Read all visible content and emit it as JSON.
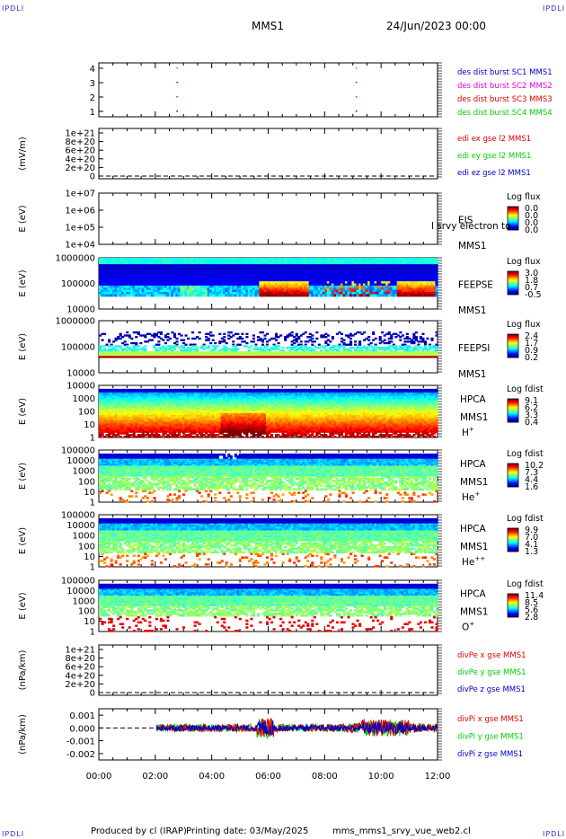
{
  "corners": {
    "tl": "IPDLI",
    "tr": "IPDLI",
    "bl": "IPDLI",
    "br": "IPDLI"
  },
  "header": {
    "mission": "MMS1",
    "date": "24/Jun/2023 00:00"
  },
  "footer": {
    "produced": "Produced by cl (IRAP)",
    "printing": "Printing date: 03/May/2025",
    "file": "mms_mms1_srvy_vue_web2.cl"
  },
  "colors": {
    "red": "#e00000",
    "green": "#00d000",
    "blue": "#0000c8",
    "magenta": "#e000e0"
  },
  "chart_data": [
    {
      "type": "scatter",
      "panel": "burst",
      "yticks": [
        "4",
        "3",
        "2",
        "1"
      ],
      "ylim": [
        0.5,
        4.5
      ],
      "legend": [
        {
          "text": "des dist burst SC1 MMS1",
          "color": "#0000c8"
        },
        {
          "text": "des dist burst SC2 MMS2",
          "color": "#e000e0"
        },
        {
          "text": "des dist burst SC3 MMS3",
          "color": "#e00000"
        },
        {
          "text": "des dist burst SC4 MMS4",
          "color": "#00d000"
        }
      ],
      "points": [
        {
          "t": 2.75,
          "sc": 1
        },
        {
          "t": 2.75,
          "sc": 2
        },
        {
          "t": 2.75,
          "sc": 3
        },
        {
          "t": 2.75,
          "sc": 4
        },
        {
          "t": 9.1,
          "sc": 1
        },
        {
          "t": 9.1,
          "sc": 2
        },
        {
          "t": 9.1,
          "sc": 3
        },
        {
          "t": 9.1,
          "sc": 4
        }
      ]
    },
    {
      "type": "line",
      "panel": "edi",
      "ylabel": "(mV/m)",
      "yticks": [
        "1e+21",
        "8e+20",
        "6e+20",
        "4e+20",
        "2e+20",
        "0"
      ],
      "legend": [
        {
          "text": "edi ex gse l2 MMS1",
          "color": "#e00000"
        },
        {
          "text": "edi ey gse l2 MMS1",
          "color": "#00d000"
        },
        {
          "text": "edi ez gse l2 MMS1",
          "color": "#0000c8"
        }
      ]
    },
    {
      "type": "heatmap",
      "panel": "eis",
      "ylabel": "E (eV)",
      "yticks": [
        "1e+07",
        "1e+06",
        "1e+05",
        "1e+04"
      ],
      "name": "EIS",
      "sat": "MMS1",
      "overlay": "l srvy electron to",
      "cbar_title": "Log flux",
      "cbar_ticks": [
        "0.0",
        "0.0",
        "0.0",
        "0.0"
      ]
    },
    {
      "type": "heatmap",
      "panel": "feepse",
      "ylabel": "E (eV)",
      "yticks": [
        "1000000",
        "100000",
        "10000"
      ],
      "name": "FEEPSE",
      "sat": "MMS1",
      "cbar_title": "Log flux",
      "cbar_ticks": [
        "3.0",
        "1.8",
        "0.7",
        "-0.5"
      ]
    },
    {
      "type": "heatmap",
      "panel": "feepsi",
      "ylabel": "E (eV)",
      "yticks": [
        "1000000",
        "100000",
        "10000"
      ],
      "name": "FEEPSI",
      "sat": "MMS1",
      "cbar_title": "Log flux",
      "cbar_ticks": [
        "2.4",
        "1.7",
        "0.9",
        "0.2"
      ]
    },
    {
      "type": "heatmap",
      "panel": "hpca-h",
      "ylabel": "E (eV)",
      "yticks": [
        "10000",
        "1000",
        "100",
        "10",
        "1"
      ],
      "name": "HPCA",
      "sat": "MMS1",
      "species": "H",
      "charge": "+",
      "cbar_title": "Log fdist",
      "cbar_ticks": [
        "9.1",
        "6.2",
        "3.3",
        "0.4"
      ]
    },
    {
      "type": "heatmap",
      "panel": "hpca-he",
      "ylabel": "E (eV)",
      "yticks": [
        "100000",
        "10000",
        "1000",
        "100",
        "10",
        "1"
      ],
      "name": "HPCA",
      "sat": "MMS1",
      "species": "He",
      "charge": "+",
      "cbar_title": "Log fdist",
      "cbar_ticks": [
        "10.2",
        "7.3",
        "4.4",
        "1.6"
      ]
    },
    {
      "type": "heatmap",
      "panel": "hpca-hepp",
      "ylabel": "E (eV)",
      "yticks": [
        "100000",
        "10000",
        "1000",
        "100",
        "10",
        "1"
      ],
      "name": "HPCA",
      "sat": "MMS1",
      "species": "He",
      "charge": "++",
      "cbar_title": "Log fdist",
      "cbar_ticks": [
        "9.9",
        "7.0",
        "4.1",
        "1.3"
      ]
    },
    {
      "type": "heatmap",
      "panel": "hpca-o",
      "ylabel": "E (eV)",
      "yticks": [
        "100000",
        "10000",
        "1000",
        "100",
        "10",
        "1"
      ],
      "name": "HPCA",
      "sat": "MMS1",
      "species": "O",
      "charge": "+",
      "cbar_title": "Log fdist",
      "cbar_ticks": [
        "11.4",
        "8.5",
        "5.6",
        "2.8"
      ]
    },
    {
      "type": "line",
      "panel": "divpe",
      "ylabel": "(nPa/km)",
      "yticks": [
        "1e+21",
        "8e+20",
        "6e+20",
        "4e+20",
        "2e+20",
        "0"
      ],
      "legend": [
        {
          "text": "divPe x gse MMS1",
          "color": "#e00000"
        },
        {
          "text": "divPe y gse MMS1",
          "color": "#00d000"
        },
        {
          "text": "divPe z gse MMS1",
          "color": "#0000c8"
        }
      ]
    },
    {
      "type": "line",
      "panel": "divpi",
      "ylabel": "(nPa/km)",
      "yticks": [
        "0.001",
        "0.000",
        "-0.001",
        "-0.002"
      ],
      "ylim": [
        -0.0025,
        0.0015
      ],
      "legend": [
        {
          "text": "divPi x gse MMS1",
          "color": "#e00000"
        },
        {
          "text": "divPi y gse MMS1",
          "color": "#00d000"
        },
        {
          "text": "divPi z gse MMS1",
          "color": "#0000c8"
        }
      ]
    }
  ],
  "xaxis": {
    "ticks": [
      "00:00",
      "02:00",
      "04:00",
      "06:00",
      "08:00",
      "10:00",
      "12:00"
    ],
    "xlim": [
      0,
      12
    ]
  }
}
